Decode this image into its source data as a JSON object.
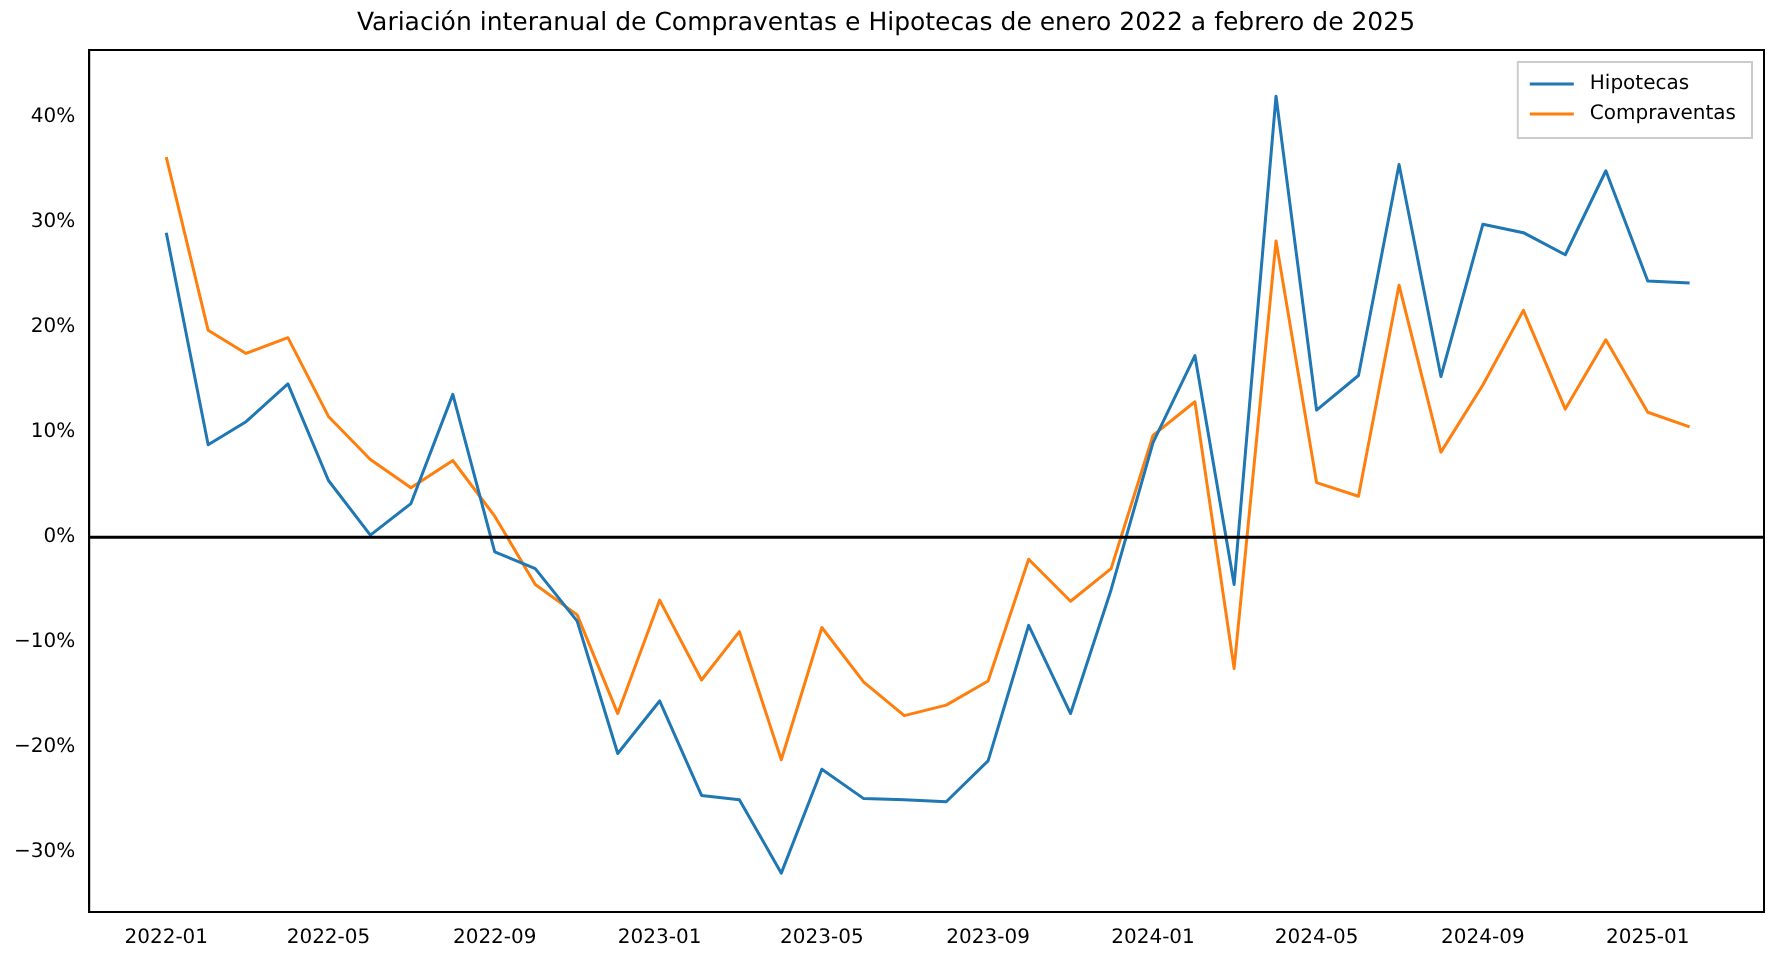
{
  "chart_data": {
    "type": "line",
    "title": "Variación interanual de Compraventas e Hipotecas de enero 2022 a febrero de 2025",
    "x": [
      "2022-01",
      "2022-02",
      "2022-03",
      "2022-04",
      "2022-05",
      "2022-06",
      "2022-07",
      "2022-08",
      "2022-09",
      "2022-10",
      "2022-11",
      "2022-12",
      "2023-01",
      "2023-02",
      "2023-03",
      "2023-04",
      "2023-05",
      "2023-06",
      "2023-07",
      "2023-08",
      "2023-09",
      "2023-10",
      "2023-11",
      "2023-12",
      "2024-01",
      "2024-02",
      "2024-03",
      "2024-04",
      "2024-05",
      "2024-06",
      "2024-07",
      "2024-08",
      "2024-09",
      "2024-10",
      "2024-11",
      "2024-12",
      "2025-01",
      "2025-02"
    ],
    "series": [
      {
        "name": "Hipotecas",
        "color": "#1f77b4",
        "values": [
          29,
          8.8,
          11,
          14.6,
          5.4,
          0.2,
          3.2,
          13.6,
          -1.4,
          -3,
          -8,
          -20.6,
          -15.6,
          -24.6,
          -25,
          -32,
          -22.1,
          -24.9,
          -25,
          -25.2,
          -21.3,
          -8.4,
          -16.8,
          -5,
          9,
          17.3,
          -4.5,
          42,
          12.1,
          15.4,
          35.5,
          15.3,
          29.8,
          29,
          26.9,
          34.9,
          24.4,
          24.2
        ]
      },
      {
        "name": "Compraventas",
        "color": "#ff7f0e",
        "values": [
          36.2,
          19.7,
          17.5,
          19,
          11.5,
          7.4,
          4.7,
          7.3,
          2,
          -4.5,
          -7.4,
          -16.8,
          -6,
          -13.6,
          -9,
          -21.2,
          -8.6,
          -13.8,
          -17,
          -16,
          -13.7,
          -2.1,
          -6.1,
          -3,
          9.7,
          12.9,
          -12.5,
          28.2,
          5.2,
          3.9,
          24,
          8.1,
          14.5,
          21.6,
          12.2,
          18.8,
          11.9,
          10.5
        ]
      }
    ],
    "xlim": [
      "2021-11-05",
      "2025-03-28"
    ],
    "xticks": [
      "2022-01",
      "2022-05",
      "2022-09",
      "2023-01",
      "2023-05",
      "2023-09",
      "2024-01",
      "2024-05",
      "2024-09",
      "2025-01"
    ],
    "ylim": [
      -35.7,
      46.4
    ],
    "yticks": [
      {
        "value": -30,
        "label": "−30%"
      },
      {
        "value": -20,
        "label": "−20%"
      },
      {
        "value": -10,
        "label": "−10%"
      },
      {
        "value": 0,
        "label": "0%"
      },
      {
        "value": 10,
        "label": "10%"
      },
      {
        "value": 20,
        "label": "20%"
      },
      {
        "value": 30,
        "label": "30%"
      },
      {
        "value": 40,
        "label": "40%"
      }
    ],
    "ref_lines": [
      {
        "axis": "y",
        "value": 0,
        "color": "#000000"
      }
    ],
    "legend": "top right",
    "grid": false,
    "marker": "none",
    "line_style": "solid"
  }
}
